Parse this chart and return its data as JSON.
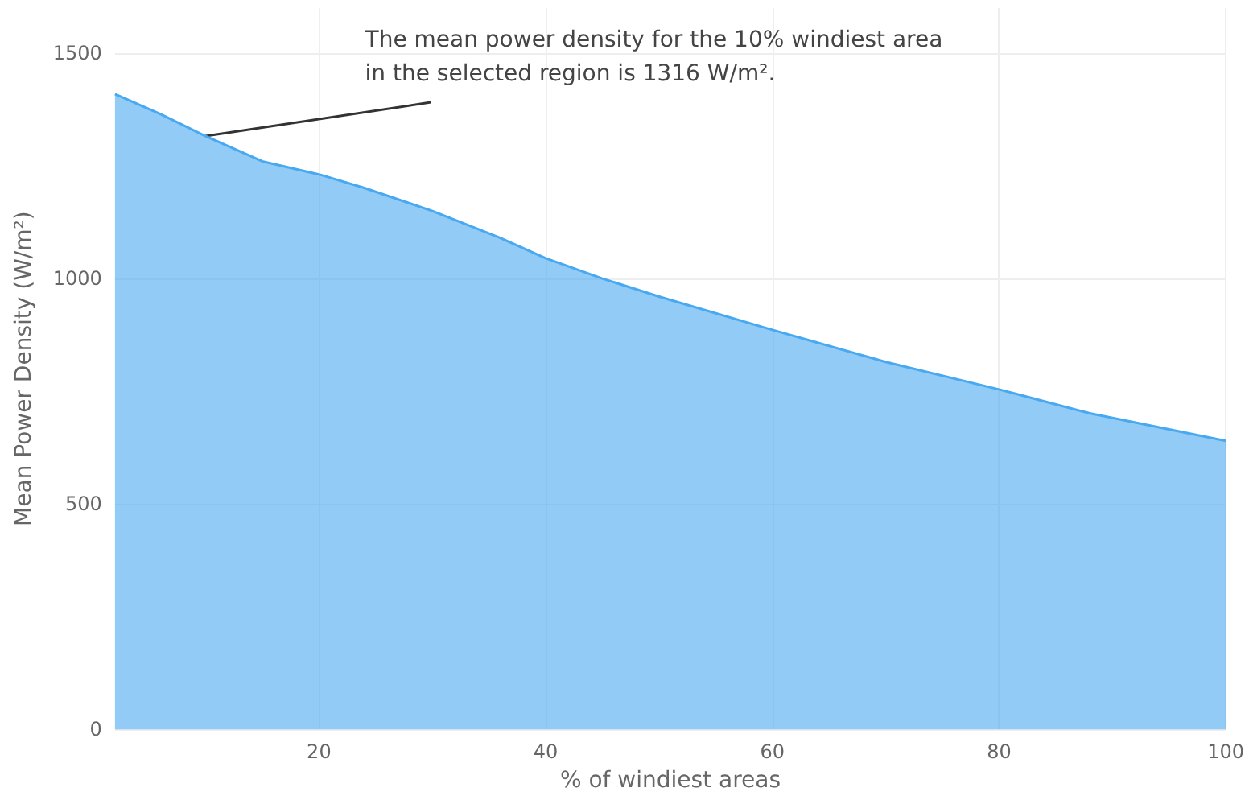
{
  "chart_data": {
    "type": "area",
    "xlabel": "% of windiest areas",
    "ylabel": "Mean Power Density (W/m²)",
    "x": [
      2,
      6,
      10,
      15,
      20,
      24,
      30,
      36,
      40,
      45,
      50,
      60,
      70,
      80,
      88,
      100
    ],
    "series": [
      {
        "color": "#48a8f0",
        "values": [
          1409,
          1365,
          1316,
          1260,
          1231,
          1201,
          1150,
          1090,
          1045,
          1000,
          960,
          886,
          815,
          754,
          701,
          640
        ]
      }
    ],
    "xlim": [
      2,
      100
    ],
    "xticks": [
      20,
      40,
      60,
      80,
      100
    ],
    "ylim": [
      0,
      1600
    ],
    "yticks": [
      0,
      500,
      1000,
      1500
    ],
    "grid": true,
    "marker": "none",
    "annotations": [
      {
        "text": "The mean power density for the 10% windiest area\nin the selected region is 1316 W/m².",
        "x": 10,
        "y": 1316
      }
    ]
  }
}
